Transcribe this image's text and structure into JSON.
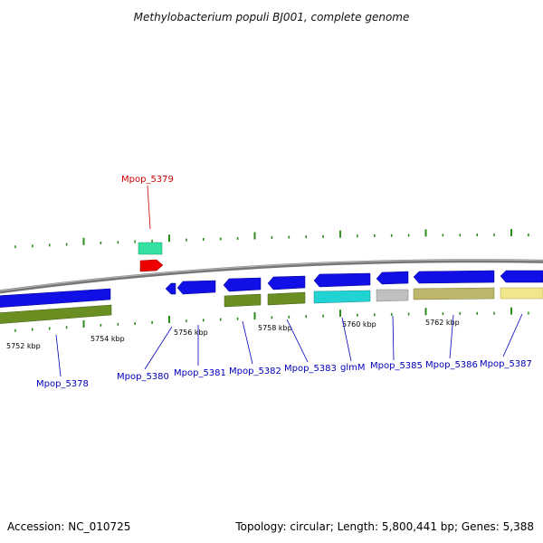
{
  "title": "Methylobacterium populi BJ001, complete genome",
  "footer": {
    "accession": "Accession: NC_010725",
    "summary": "Topology: circular; Length: 5,800,441 bp; Genes: 5,388"
  },
  "colors": {
    "backbone": "#888888",
    "tick": "#2e8b1e",
    "label_default": "#0000bb",
    "label_highlight": "#cc0000"
  },
  "position_labels": [
    "5752 kbp",
    "5754 kbp",
    "5756 kbp",
    "5758 kbp",
    "5760 kbp",
    "5762 kbp"
  ],
  "genes": [
    {
      "label": "Mpop_5378",
      "highlight": false
    },
    {
      "label": "Mpop_5379",
      "highlight": true
    },
    {
      "label": "Mpop_5380",
      "highlight": false
    },
    {
      "label": "Mpop_5381",
      "highlight": false
    },
    {
      "label": "Mpop_5382",
      "highlight": false
    },
    {
      "label": "Mpop_5383",
      "highlight": false
    },
    {
      "label": "glmM",
      "highlight": false
    },
    {
      "label": "Mpop_5385",
      "highlight": false
    },
    {
      "label": "Mpop_5386",
      "highlight": false
    },
    {
      "label": "Mpop_5387",
      "highlight": false
    }
  ]
}
